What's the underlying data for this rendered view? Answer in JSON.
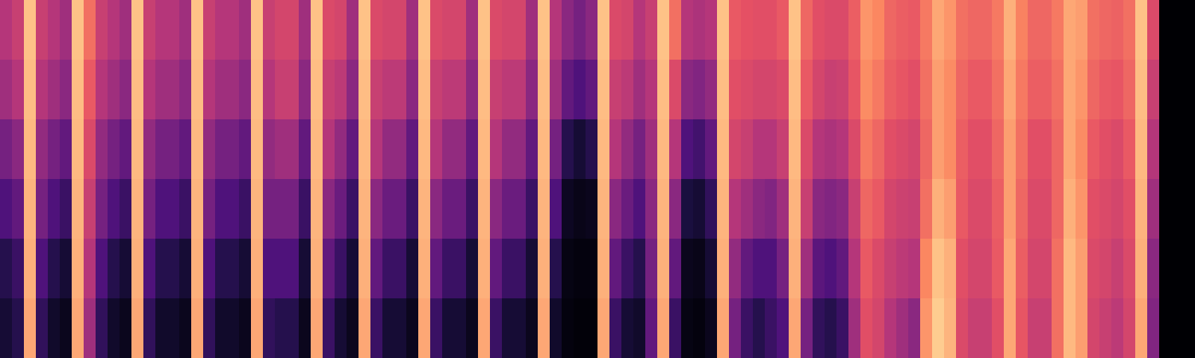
{
  "chart_data": {
    "type": "heatmap",
    "color": "magma",
    "tick_labels": false,
    "zlim": [
      0,
      1
    ],
    "cells": [
      [
        0.5,
        0.45,
        0.35,
        0.25,
        0.15,
        0.1
      ],
      [
        0.55,
        0.5,
        0.4,
        0.3,
        0.2,
        0.15
      ],
      [
        0.88,
        0.87,
        0.86,
        0.85,
        0.84,
        0.82
      ],
      [
        0.55,
        0.5,
        0.42,
        0.35,
        0.25,
        0.18
      ],
      [
        0.5,
        0.45,
        0.35,
        0.25,
        0.15,
        0.08
      ],
      [
        0.45,
        0.4,
        0.3,
        0.2,
        0.1,
        0.05
      ],
      [
        0.88,
        0.87,
        0.86,
        0.85,
        0.84,
        0.82
      ],
      [
        0.7,
        0.65,
        0.6,
        0.55,
        0.5,
        0.45
      ],
      [
        0.55,
        0.5,
        0.42,
        0.35,
        0.25,
        0.18
      ],
      [
        0.5,
        0.45,
        0.35,
        0.25,
        0.15,
        0.08
      ],
      [
        0.45,
        0.4,
        0.3,
        0.2,
        0.1,
        0.05
      ],
      [
        0.88,
        0.87,
        0.86,
        0.85,
        0.84,
        0.82
      ],
      [
        0.55,
        0.5,
        0.42,
        0.35,
        0.25,
        0.18
      ],
      [
        0.5,
        0.45,
        0.35,
        0.25,
        0.15,
        0.08
      ],
      [
        0.5,
        0.45,
        0.35,
        0.25,
        0.15,
        0.08
      ],
      [
        0.45,
        0.4,
        0.3,
        0.2,
        0.1,
        0.05
      ],
      [
        0.88,
        0.87,
        0.86,
        0.85,
        0.84,
        0.82
      ],
      [
        0.55,
        0.5,
        0.42,
        0.35,
        0.25,
        0.18
      ],
      [
        0.5,
        0.45,
        0.35,
        0.25,
        0.15,
        0.08
      ],
      [
        0.5,
        0.45,
        0.35,
        0.25,
        0.15,
        0.08
      ],
      [
        0.45,
        0.4,
        0.3,
        0.2,
        0.1,
        0.05
      ],
      [
        0.88,
        0.87,
        0.86,
        0.85,
        0.84,
        0.82
      ],
      [
        0.55,
        0.5,
        0.42,
        0.35,
        0.25,
        0.18
      ],
      [
        0.58,
        0.55,
        0.45,
        0.35,
        0.25,
        0.15
      ],
      [
        0.58,
        0.55,
        0.45,
        0.35,
        0.25,
        0.15
      ],
      [
        0.45,
        0.4,
        0.3,
        0.2,
        0.1,
        0.05
      ],
      [
        0.88,
        0.87,
        0.86,
        0.85,
        0.84,
        0.82
      ],
      [
        0.6,
        0.55,
        0.5,
        0.4,
        0.3,
        0.2
      ],
      [
        0.58,
        0.52,
        0.42,
        0.32,
        0.2,
        0.1
      ],
      [
        0.45,
        0.4,
        0.3,
        0.2,
        0.1,
        0.05
      ],
      [
        0.88,
        0.87,
        0.86,
        0.85,
        0.84,
        0.82
      ],
      [
        0.6,
        0.55,
        0.5,
        0.4,
        0.3,
        0.2
      ],
      [
        0.58,
        0.52,
        0.42,
        0.32,
        0.2,
        0.1
      ],
      [
        0.58,
        0.52,
        0.42,
        0.32,
        0.2,
        0.1
      ],
      [
        0.45,
        0.4,
        0.3,
        0.2,
        0.1,
        0.05
      ],
      [
        0.88,
        0.87,
        0.86,
        0.85,
        0.84,
        0.82
      ],
      [
        0.6,
        0.55,
        0.5,
        0.4,
        0.3,
        0.2
      ],
      [
        0.58,
        0.52,
        0.42,
        0.32,
        0.2,
        0.1
      ],
      [
        0.58,
        0.52,
        0.42,
        0.32,
        0.2,
        0.1
      ],
      [
        0.45,
        0.4,
        0.3,
        0.2,
        0.1,
        0.05
      ],
      [
        0.88,
        0.87,
        0.86,
        0.85,
        0.84,
        0.82
      ],
      [
        0.6,
        0.55,
        0.5,
        0.4,
        0.3,
        0.2
      ],
      [
        0.58,
        0.52,
        0.42,
        0.32,
        0.2,
        0.1
      ],
      [
        0.58,
        0.52,
        0.42,
        0.32,
        0.2,
        0.1
      ],
      [
        0.45,
        0.4,
        0.3,
        0.2,
        0.1,
        0.05
      ],
      [
        0.88,
        0.87,
        0.86,
        0.85,
        0.84,
        0.82
      ],
      [
        0.5,
        0.45,
        0.35,
        0.25,
        0.15,
        0.08
      ],
      [
        0.4,
        0.3,
        0.15,
        0.06,
        0.03,
        0.02
      ],
      [
        0.35,
        0.25,
        0.1,
        0.04,
        0.02,
        0.01
      ],
      [
        0.4,
        0.3,
        0.15,
        0.05,
        0.02,
        0.01
      ],
      [
        0.88,
        0.87,
        0.86,
        0.85,
        0.84,
        0.82
      ],
      [
        0.6,
        0.55,
        0.5,
        0.4,
        0.3,
        0.2
      ],
      [
        0.58,
        0.52,
        0.42,
        0.32,
        0.2,
        0.1
      ],
      [
        0.5,
        0.45,
        0.35,
        0.25,
        0.15,
        0.08
      ],
      [
        0.55,
        0.5,
        0.45,
        0.4,
        0.35,
        0.3
      ],
      [
        0.88,
        0.87,
        0.86,
        0.85,
        0.84,
        0.82
      ],
      [
        0.7,
        0.6,
        0.5,
        0.4,
        0.3,
        0.2
      ],
      [
        0.5,
        0.4,
        0.25,
        0.12,
        0.05,
        0.03
      ],
      [
        0.48,
        0.38,
        0.22,
        0.1,
        0.04,
        0.02
      ],
      [
        0.5,
        0.42,
        0.3,
        0.18,
        0.1,
        0.05
      ],
      [
        0.88,
        0.87,
        0.86,
        0.85,
        0.84,
        0.82
      ],
      [
        0.65,
        0.62,
        0.58,
        0.5,
        0.42,
        0.35
      ],
      [
        0.63,
        0.6,
        0.55,
        0.45,
        0.3,
        0.2
      ],
      [
        0.62,
        0.58,
        0.5,
        0.4,
        0.25,
        0.15
      ],
      [
        0.62,
        0.58,
        0.5,
        0.38,
        0.25,
        0.2
      ],
      [
        0.65,
        0.6,
        0.55,
        0.45,
        0.35,
        0.25
      ],
      [
        0.88,
        0.87,
        0.86,
        0.85,
        0.84,
        0.82
      ],
      [
        0.68,
        0.65,
        0.6,
        0.55,
        0.45,
        0.35
      ],
      [
        0.62,
        0.58,
        0.5,
        0.4,
        0.28,
        0.18
      ],
      [
        0.6,
        0.55,
        0.48,
        0.38,
        0.25,
        0.15
      ],
      [
        0.6,
        0.56,
        0.5,
        0.4,
        0.3,
        0.2
      ],
      [
        0.66,
        0.64,
        0.6,
        0.55,
        0.5,
        0.45
      ],
      [
        0.78,
        0.76,
        0.72,
        0.68,
        0.65,
        0.62
      ],
      [
        0.75,
        0.72,
        0.68,
        0.65,
        0.6,
        0.58
      ],
      [
        0.68,
        0.66,
        0.62,
        0.58,
        0.55,
        0.5
      ],
      [
        0.66,
        0.64,
        0.6,
        0.56,
        0.52,
        0.45
      ],
      [
        0.65,
        0.62,
        0.58,
        0.55,
        0.5,
        0.4
      ],
      [
        0.72,
        0.7,
        0.68,
        0.7,
        0.75,
        0.78
      ],
      [
        0.82,
        0.8,
        0.8,
        0.84,
        0.88,
        0.9
      ],
      [
        0.78,
        0.76,
        0.76,
        0.8,
        0.84,
        0.85
      ],
      [
        0.7,
        0.68,
        0.66,
        0.65,
        0.62,
        0.6
      ],
      [
        0.68,
        0.65,
        0.62,
        0.6,
        0.58,
        0.55
      ],
      [
        0.68,
        0.65,
        0.62,
        0.6,
        0.58,
        0.55
      ],
      [
        0.72,
        0.7,
        0.68,
        0.66,
        0.65,
        0.62
      ],
      [
        0.84,
        0.82,
        0.8,
        0.8,
        0.82,
        0.82
      ],
      [
        0.74,
        0.72,
        0.7,
        0.68,
        0.66,
        0.64
      ],
      [
        0.68,
        0.66,
        0.62,
        0.6,
        0.58,
        0.55
      ],
      [
        0.68,
        0.66,
        0.62,
        0.6,
        0.58,
        0.55
      ],
      [
        0.72,
        0.7,
        0.68,
        0.68,
        0.7,
        0.7
      ],
      [
        0.82,
        0.82,
        0.82,
        0.84,
        0.86,
        0.86
      ],
      [
        0.8,
        0.78,
        0.76,
        0.78,
        0.8,
        0.8
      ],
      [
        0.7,
        0.68,
        0.65,
        0.62,
        0.6,
        0.58
      ],
      [
        0.68,
        0.65,
        0.62,
        0.6,
        0.58,
        0.55
      ],
      [
        0.67,
        0.64,
        0.6,
        0.58,
        0.55,
        0.52
      ],
      [
        0.7,
        0.68,
        0.65,
        0.62,
        0.6,
        0.58
      ],
      [
        0.88,
        0.87,
        0.86,
        0.85,
        0.84,
        0.82
      ],
      [
        0.6,
        0.55,
        0.5,
        0.45,
        0.4,
        0.38
      ],
      [
        0,
        0,
        0,
        0,
        0,
        0
      ],
      [
        0,
        0,
        0,
        0,
        0,
        0
      ],
      [
        0,
        0,
        0,
        0,
        0,
        0
      ]
    ]
  }
}
